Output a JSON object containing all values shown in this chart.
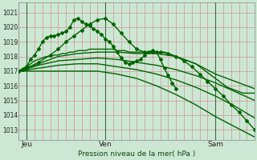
{
  "bg_color": "#cce8d4",
  "grid_bg_color": "#cce8d4",
  "grid_color_h": "#e8b0b0",
  "grid_color_v": "#e8b0b0",
  "line_color_dark": "#006400",
  "line_color_mid": "#006400",
  "title": "Pression niveau de la mer( hPa )",
  "ylabel_ticks": [
    1013,
    1014,
    1015,
    1016,
    1017,
    1018,
    1019,
    1020,
    1021
  ],
  "ylim": [
    1012.3,
    1021.7
  ],
  "xlim": [
    0,
    60
  ],
  "xtick_positions": [
    2,
    22,
    50
  ],
  "xtick_labels": [
    "Jeu",
    "Ven",
    "Sam"
  ],
  "vline_positions": [
    2,
    22,
    50
  ],
  "n_vgrid": 30,
  "series": [
    {
      "x": [
        0,
        1,
        2,
        3,
        4,
        5,
        6,
        7,
        8,
        9,
        10,
        11,
        12,
        13,
        14,
        15,
        16,
        17,
        18,
        19,
        20,
        21,
        22,
        23,
        24,
        25,
        26,
        27,
        28,
        29,
        30,
        31,
        32,
        33,
        34,
        35,
        36,
        37,
        38,
        39,
        40
      ],
      "y": [
        1017.0,
        1017.1,
        1017.3,
        1017.8,
        1018.1,
        1018.5,
        1019.0,
        1019.3,
        1019.4,
        1019.4,
        1019.5,
        1019.6,
        1019.7,
        1020.0,
        1020.5,
        1020.6,
        1020.4,
        1020.2,
        1020.1,
        1019.9,
        1019.7,
        1019.5,
        1019.2,
        1019.0,
        1018.7,
        1018.3,
        1017.9,
        1017.6,
        1017.5,
        1017.6,
        1017.7,
        1017.8,
        1018.1,
        1018.3,
        1018.4,
        1018.3,
        1017.8,
        1017.2,
        1016.7,
        1016.2,
        1015.8
      ],
      "marker": "D",
      "ms": 2.0,
      "lw": 1.0,
      "color": "#006400"
    },
    {
      "x": [
        0,
        1,
        2,
        3,
        4,
        5,
        6,
        7,
        8,
        9,
        10,
        11,
        12,
        13,
        14,
        15,
        16,
        17,
        18,
        19,
        20,
        21,
        22,
        23,
        24,
        25,
        26,
        27,
        28,
        29,
        30,
        31,
        32,
        33,
        34,
        35,
        36,
        37,
        38,
        39,
        40,
        41,
        42,
        43,
        44,
        45,
        46,
        47,
        48,
        49,
        50,
        51,
        52,
        53,
        54,
        55,
        56,
        57,
        58,
        59,
        60
      ],
      "y": [
        1017.0,
        1017.2,
        1017.3,
        1017.5,
        1017.7,
        1017.8,
        1017.9,
        1018.0,
        1018.0,
        1018.1,
        1018.1,
        1018.2,
        1018.2,
        1018.3,
        1018.3,
        1018.4,
        1018.4,
        1018.4,
        1018.5,
        1018.5,
        1018.5,
        1018.5,
        1018.5,
        1018.5,
        1018.5,
        1018.4,
        1018.4,
        1018.4,
        1018.3,
        1018.3,
        1018.3,
        1018.3,
        1018.3,
        1018.3,
        1018.3,
        1018.3,
        1018.3,
        1018.3,
        1018.2,
        1018.1,
        1018.0,
        1017.9,
        1017.8,
        1017.7,
        1017.6,
        1017.5,
        1017.3,
        1017.1,
        1016.9,
        1016.7,
        1016.5,
        1016.3,
        1016.1,
        1015.9,
        1015.8,
        1015.7,
        1015.6,
        1015.5,
        1015.5,
        1015.5,
        1015.5
      ],
      "marker": null,
      "ms": 0,
      "lw": 1.0,
      "color": "#006400"
    },
    {
      "x": [
        0,
        2,
        5,
        8,
        10,
        12,
        14,
        16,
        18,
        20,
        22,
        24,
        26,
        28,
        30,
        32,
        34,
        36,
        38,
        40,
        42,
        44,
        46,
        48,
        50,
        52,
        54,
        56,
        58,
        60
      ],
      "y": [
        1017.0,
        1017.2,
        1017.6,
        1018.1,
        1018.5,
        1019.0,
        1019.4,
        1019.8,
        1020.2,
        1020.5,
        1020.6,
        1020.2,
        1019.6,
        1019.0,
        1018.5,
        1018.3,
        1018.3,
        1018.3,
        1018.2,
        1018.0,
        1017.7,
        1017.3,
        1016.8,
        1016.3,
        1015.8,
        1015.3,
        1014.7,
        1014.2,
        1013.6,
        1013.0
      ],
      "marker": "D",
      "ms": 2.0,
      "lw": 1.0,
      "color": "#006400"
    },
    {
      "x": [
        0,
        5,
        10,
        15,
        20,
        25,
        30,
        35,
        40,
        45,
        50,
        55,
        60
      ],
      "y": [
        1017.0,
        1017.5,
        1018.0,
        1018.2,
        1018.3,
        1018.3,
        1018.2,
        1018.2,
        1018.0,
        1017.5,
        1016.8,
        1016.3,
        1015.8
      ],
      "marker": null,
      "ms": 0,
      "lw": 1.0,
      "color": "#006400"
    },
    {
      "x": [
        0,
        5,
        10,
        15,
        20,
        25,
        30,
        35,
        40,
        45,
        50,
        55,
        60
      ],
      "y": [
        1017.0,
        1017.4,
        1017.7,
        1017.8,
        1017.9,
        1017.8,
        1017.6,
        1017.4,
        1017.1,
        1016.7,
        1016.2,
        1015.6,
        1015.0
      ],
      "marker": null,
      "ms": 0,
      "lw": 1.0,
      "color": "#006400"
    },
    {
      "x": [
        0,
        5,
        10,
        15,
        20,
        25,
        30,
        35,
        40,
        45,
        50,
        55,
        60
      ],
      "y": [
        1017.0,
        1017.2,
        1017.4,
        1017.5,
        1017.5,
        1017.3,
        1017.1,
        1016.8,
        1016.4,
        1015.9,
        1015.3,
        1014.6,
        1013.8
      ],
      "marker": null,
      "ms": 0,
      "lw": 1.0,
      "color": "#006400"
    },
    {
      "x": [
        0,
        5,
        10,
        15,
        20,
        25,
        30,
        35,
        40,
        45,
        50,
        55,
        60
      ],
      "y": [
        1017.0,
        1017.0,
        1017.0,
        1017.0,
        1017.0,
        1016.8,
        1016.5,
        1016.0,
        1015.4,
        1014.7,
        1013.9,
        1013.2,
        1012.5
      ],
      "marker": null,
      "ms": 0,
      "lw": 1.0,
      "color": "#006400"
    }
  ]
}
